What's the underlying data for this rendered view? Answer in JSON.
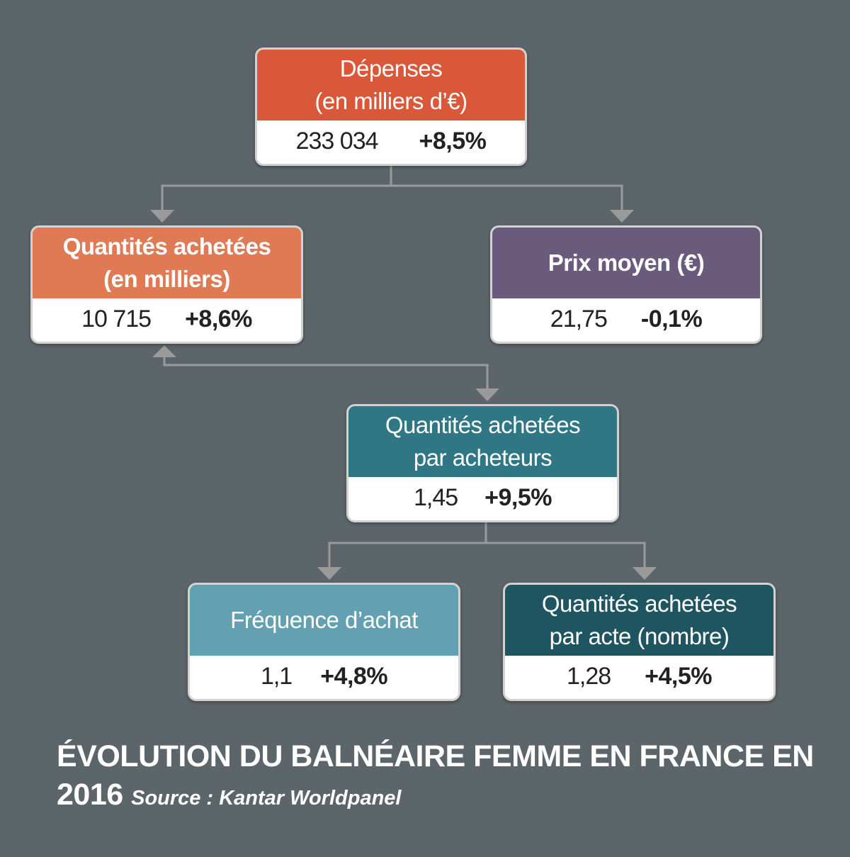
{
  "cards": {
    "depenses": {
      "title_line1": "Dépenses",
      "title_line2": "(en milliers d’€)",
      "value": "233 034",
      "change": "+8,5%",
      "color": "#d9583a"
    },
    "quantites": {
      "title_line1": "Quantités achetées",
      "title_line2": "(en milliers)",
      "value": "10 715",
      "change": "+8,6%",
      "color": "#e07a55"
    },
    "prix": {
      "title": "Prix moyen (€)",
      "value": "21,75",
      "change": "-0,1%",
      "color": "#6a5a7c"
    },
    "quantites_par_acheteurs": {
      "title_line1": "Quantités achetées",
      "title_line2": "par acheteurs",
      "value": "1,45",
      "change": "+9,5%",
      "color": "#2f7784"
    },
    "frequence": {
      "title": "Fréquence d’achat",
      "value": "1,1",
      "change": "+4,8%",
      "color": "#62a0b2"
    },
    "quantites_par_acte": {
      "title_line1": "Quantités achetées",
      "title_line2": "par acte (nombre)",
      "value": "1,28",
      "change": "+4,5%",
      "color": "#1e5560"
    }
  },
  "caption": {
    "title": "ÉVOLUTION DU BALNÉAIRE FEMME EN FRANCE EN 2016",
    "source": "Source : Kantar Worldpanel"
  },
  "colors": {
    "background": "#5c6569",
    "connector": "#9a9a9a",
    "card_border": "#d2d2d2"
  }
}
